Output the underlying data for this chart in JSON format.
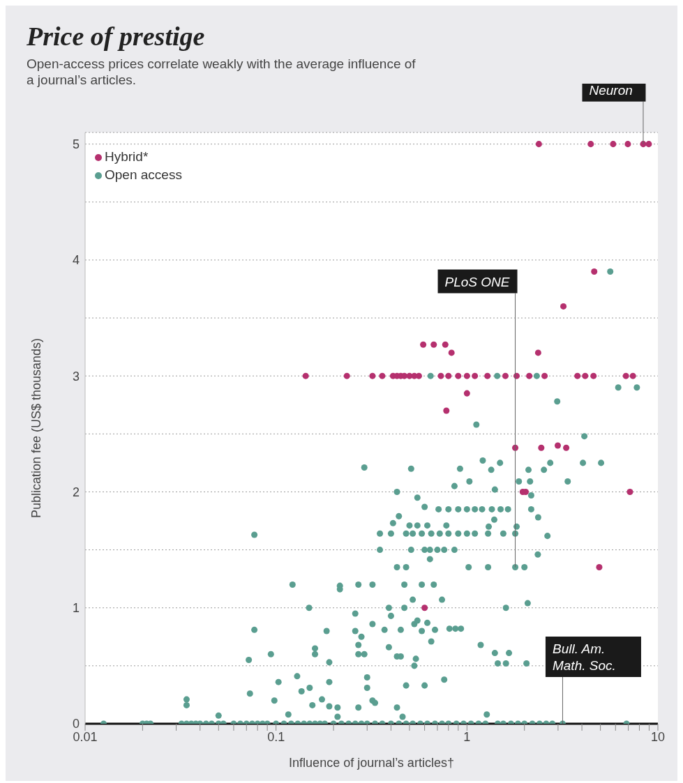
{
  "chart_data": {
    "type": "scatter",
    "title": "Price of prestige",
    "subtitle": "Open-access prices correlate weakly with the average influence of a journal’s articles.",
    "xlabel": "Influence of journal’s articles†",
    "ylabel": "Publication fee (US$ thousands)",
    "log": "x",
    "xlim": [
      0.01,
      10
    ],
    "xticks": [
      0.01,
      {
        "value": 0.02,
        "label": null
      },
      {
        "value": 0.03,
        "label": null
      },
      {
        "value": 0.04,
        "label": null
      },
      {
        "value": 0.05,
        "label": null
      },
      {
        "value": 0.06,
        "label": null
      },
      {
        "value": 0.07,
        "label": null
      },
      {
        "value": 0.08,
        "label": null
      },
      {
        "value": 0.09,
        "label": null
      },
      0.1,
      {
        "value": 0.2,
        "label": null
      },
      {
        "value": 0.3,
        "label": null
      },
      {
        "value": 0.4,
        "label": null
      },
      {
        "value": 0.5,
        "label": null
      },
      {
        "value": 0.6,
        "label": null
      },
      {
        "value": 0.7,
        "label": null
      },
      {
        "value": 0.8,
        "label": null
      },
      {
        "value": 0.9,
        "label": null
      },
      1,
      {
        "value": 2,
        "label": null
      },
      {
        "value": 3,
        "label": null
      },
      {
        "value": 4,
        "label": null
      },
      {
        "value": 5,
        "label": null
      },
      {
        "value": 6,
        "label": null
      },
      {
        "value": 7,
        "label": null
      },
      {
        "value": 8,
        "label": null
      },
      {
        "value": 9,
        "label": null
      },
      10
    ],
    "ylim": [
      0,
      5.1
    ],
    "yticks": [
      0,
      {
        "value": 0.5,
        "label": null
      },
      1,
      {
        "value": 1.5,
        "label": null
      },
      2,
      {
        "value": 2.5,
        "label": null
      },
      3,
      {
        "value": 3.5,
        "label": null
      },
      4,
      {
        "value": 4.5,
        "label": null
      },
      5
    ],
    "grid": "y",
    "legend": "top left",
    "marker": "circle",
    "series": [
      {
        "name": "Hybrid*",
        "color": "#b5306e",
        "x": [
          2.38,
          4.45,
          5.83,
          6.96,
          8.38,
          8.96,
          4.64,
          3.2,
          0.59,
          0.67,
          0.77,
          0.83,
          2.36,
          0.143,
          0.235,
          0.32,
          0.36,
          0.41,
          0.43,
          0.45,
          0.47,
          0.5,
          0.53,
          0.56,
          0.73,
          0.8,
          0.9,
          1.0,
          1.1,
          1.28,
          1.59,
          1.82,
          2.12,
          2.55,
          3.79,
          4.16,
          4.6,
          6.8,
          7.4,
          1.0,
          0.78,
          1.79,
          2.45,
          2.99,
          3.31,
          1.96,
          2.03,
          7.14,
          4.93,
          0.6
        ],
        "values": [
          5,
          5,
          5,
          5,
          5,
          5,
          3.9,
          3.6,
          3.27,
          3.27,
          3.27,
          3.2,
          3.2,
          3,
          3,
          3,
          3,
          3,
          3,
          3,
          3,
          3,
          3,
          3,
          3,
          3,
          3,
          3,
          3,
          3,
          3,
          3,
          3,
          3,
          3,
          3,
          3,
          3,
          3,
          2.85,
          2.7,
          2.38,
          2.38,
          2.4,
          2.38,
          2,
          2,
          2,
          1.35,
          1
        ]
      },
      {
        "name": "Open access",
        "color": "#5a9e90",
        "x": [
          5.63,
          0.645,
          1.44,
          2.32,
          6.2,
          7.76,
          2.97,
          1.12,
          4.12,
          1.21,
          1.49,
          1.34,
          4.05,
          5.04,
          3.37,
          2.73,
          2.53,
          2.1,
          2.14,
          1.87,
          0.51,
          0.29,
          0.92,
          0.43,
          1.4,
          1.03,
          0.86,
          2.17,
          2.17,
          2.36,
          2.64,
          2.35,
          0.71,
          0.8,
          0.9,
          1.0,
          1.1,
          1.2,
          1.35,
          1.5,
          1.64,
          0.55,
          0.6,
          0.48,
          0.52,
          0.58,
          0.65,
          0.72,
          0.8,
          0.9,
          1.0,
          1.1,
          0.5,
          0.55,
          0.62,
          0.78,
          0.35,
          0.4,
          0.41,
          0.44,
          1.55,
          1.79,
          1.82,
          1.29,
          1.39,
          1.3,
          0.6,
          0.64,
          0.7,
          0.76,
          0.86,
          0.35,
          0.51,
          0.64,
          0.43,
          0.48,
          1.02,
          1.29,
          1.79,
          2.0,
          0.32,
          0.47,
          0.58,
          0.67,
          0.52,
          0.74,
          0.39,
          0.47,
          0.4,
          1.6,
          2.08,
          0.32,
          0.37,
          0.45,
          0.53,
          0.55,
          0.58,
          0.62,
          0.68,
          0.81,
          0.87,
          0.93,
          0.39,
          0.65,
          1.18,
          1.4,
          1.66,
          1.45,
          1.6,
          2.05,
          0.43,
          0.45,
          0.54,
          0.53,
          0.76,
          0.48,
          0.6,
          0.3,
          0.3,
          0.32,
          0.33,
          0.43,
          0.46,
          1.27,
          0.077,
          0.122,
          0.216,
          0.27,
          0.216,
          0.149,
          0.26,
          0.077,
          0.184,
          0.26,
          0.28,
          0.16,
          0.16,
          0.094,
          0.072,
          0.19,
          0.27,
          0.27,
          0.29,
          0.129,
          0.103,
          0.19,
          0.073,
          0.136,
          0.15,
          0.098,
          0.155,
          0.174,
          0.19,
          0.21,
          0.27,
          0.116,
          0.21,
          0.034,
          0.034,
          0.05,
          0.0125,
          0.02,
          0.021,
          0.022,
          0.032,
          0.034,
          0.036,
          0.038,
          0.04,
          0.043,
          0.046,
          0.05,
          0.053,
          0.06,
          0.065,
          0.07,
          0.075,
          0.08,
          0.085,
          0.09,
          0.1,
          0.11,
          0.12,
          0.13,
          0.14,
          0.15,
          0.16,
          0.17,
          0.18,
          0.2,
          0.22,
          0.24,
          0.26,
          0.28,
          0.3,
          0.33,
          0.36,
          0.4,
          0.44,
          0.48,
          0.52,
          0.57,
          0.62,
          0.68,
          0.74,
          0.8,
          0.88,
          0.96,
          1.05,
          1.15,
          1.25,
          1.45,
          1.55,
          1.7,
          1.85,
          2.0,
          2.2,
          2.4,
          2.6,
          2.8,
          3.17,
          6.85
        ],
        "values": [
          3.9,
          3,
          3,
          3,
          2.9,
          2.9,
          2.78,
          2.58,
          2.48,
          2.27,
          2.25,
          2.19,
          2.25,
          2.25,
          2.09,
          2.25,
          2.19,
          2.19,
          2.09,
          2.09,
          2.2,
          2.21,
          2.2,
          2,
          2.02,
          2.09,
          2.05,
          1.97,
          1.85,
          1.78,
          1.62,
          1.46,
          1.85,
          1.85,
          1.85,
          1.85,
          1.85,
          1.85,
          1.85,
          1.85,
          1.85,
          1.95,
          1.87,
          1.64,
          1.64,
          1.64,
          1.64,
          1.64,
          1.64,
          1.64,
          1.64,
          1.64,
          1.71,
          1.71,
          1.71,
          1.71,
          1.64,
          1.64,
          1.73,
          1.79,
          1.64,
          1.64,
          1.7,
          1.64,
          1.76,
          1.7,
          1.5,
          1.5,
          1.5,
          1.5,
          1.5,
          1.5,
          1.5,
          1.42,
          1.35,
          1.35,
          1.35,
          1.35,
          1.35,
          1.35,
          1.2,
          1.2,
          1.2,
          1.2,
          1.07,
          1.07,
          1,
          1,
          0.93,
          1,
          1.04,
          0.86,
          0.81,
          0.81,
          0.86,
          0.89,
          0.8,
          0.87,
          0.81,
          0.82,
          0.82,
          0.82,
          0.66,
          0.71,
          0.68,
          0.61,
          0.61,
          0.52,
          0.52,
          0.52,
          0.58,
          0.58,
          0.56,
          0.5,
          0.38,
          0.33,
          0.33,
          0.4,
          0.31,
          0.2,
          0.18,
          0.14,
          0.06,
          0.08,
          1.63,
          1.2,
          1.19,
          1.2,
          1.16,
          1,
          0.95,
          0.81,
          0.8,
          0.8,
          0.75,
          0.65,
          0.6,
          0.6,
          0.55,
          0.53,
          0.68,
          0.6,
          0.6,
          0.41,
          0.36,
          0.36,
          0.26,
          0.28,
          0.31,
          0.2,
          0.16,
          0.21,
          0.15,
          0.14,
          0.14,
          0.08,
          0.06,
          0.21,
          0.16,
          0.07,
          0,
          0,
          0,
          0,
          0,
          0,
          0,
          0,
          0,
          0,
          0,
          0,
          0,
          0,
          0,
          0,
          0,
          0,
          0,
          0,
          0,
          0,
          0,
          0,
          0,
          0,
          0,
          0,
          0,
          0,
          0,
          0,
          0,
          0,
          0,
          0,
          0,
          0,
          0,
          0,
          0,
          0,
          0,
          0,
          0,
          0,
          0,
          0,
          0,
          0,
          0,
          0,
          0,
          0,
          0,
          0,
          0,
          0,
          0,
          0,
          0,
          0
        ]
      }
    ],
    "annotations": [
      {
        "text": "Neuron",
        "x": 8.38,
        "y": 5
      },
      {
        "text": "PLoS ONE",
        "x": 1.79,
        "y": 1.35
      },
      {
        "text": "Bull. Am. Math. Soc.",
        "x": 3.17,
        "y": 0
      }
    ]
  }
}
